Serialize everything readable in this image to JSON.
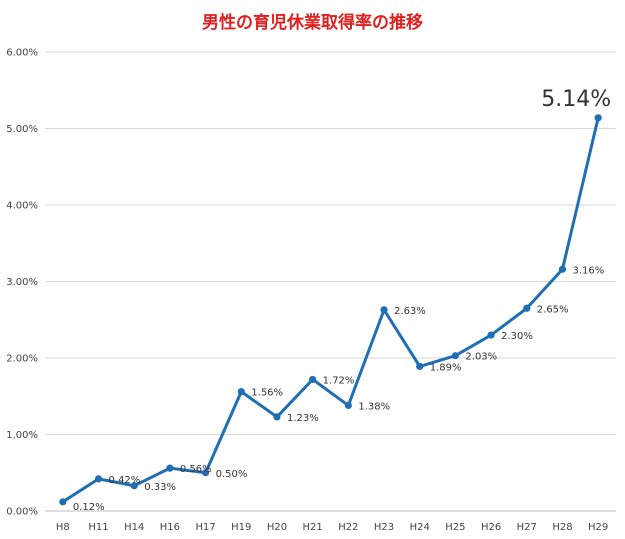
{
  "chart_data": {
    "type": "line",
    "title": "男性の育児休業取得率の推移",
    "categories": [
      "H8",
      "H11",
      "H14",
      "H16",
      "H17",
      "H19",
      "H20",
      "H21",
      "H22",
      "H23",
      "H24",
      "H25",
      "H26",
      "H27",
      "H28",
      "H29"
    ],
    "series": [
      {
        "values": [
          0.12,
          0.42,
          0.33,
          0.56,
          0.5,
          1.56,
          1.23,
          1.72,
          1.38,
          2.63,
          1.89,
          2.03,
          2.3,
          2.65,
          3.16,
          5.14
        ],
        "labels": [
          "0.12%",
          "0.42%",
          "0.33%",
          "0.56%",
          "0.50%",
          "1.56%",
          "1.23%",
          "1.72%",
          "1.38%",
          "2.63%",
          "1.89%",
          "2.03%",
          "2.30%",
          "2.65%",
          "3.16%",
          "5.14%"
        ],
        "color": "#1f6fb5"
      }
    ],
    "ylim": [
      0,
      6
    ],
    "yticks": [
      "0.00%",
      "1.00%",
      "2.00%",
      "3.00%",
      "4.00%",
      "5.00%",
      "6.00%"
    ],
    "grid": true,
    "legend": "none",
    "highlight_last_label": true
  }
}
